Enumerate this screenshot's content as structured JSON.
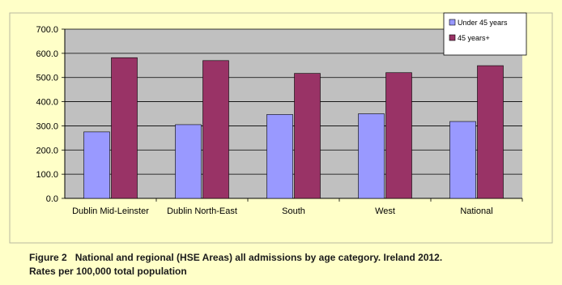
{
  "chart_data": {
    "type": "bar",
    "categories": [
      "Dublin Mid-Leinster",
      "Dublin North-East",
      "South",
      "West",
      "National"
    ],
    "series": [
      {
        "name": "Under 45 years",
        "values": [
          275,
          305,
          347,
          350,
          318
        ],
        "color": "#9999ff"
      },
      {
        "name": "45 years+",
        "values": [
          582,
          570,
          517,
          520,
          549
        ],
        "color": "#993366"
      }
    ],
    "yticks": [
      "0.0",
      "100.0",
      "200.0",
      "300.0",
      "400.0",
      "500.0",
      "600.0",
      "700.0"
    ],
    "ylim": [
      0,
      700
    ],
    "grid": true,
    "legend_position": "top-right",
    "plot_background": "#c0c0c0"
  },
  "caption": {
    "figure_label": "Figure 2",
    "line1": "National and regional (HSE Areas) all admissions by age category. Ireland 2012.",
    "line2": "Rates per 100,000 total population"
  }
}
